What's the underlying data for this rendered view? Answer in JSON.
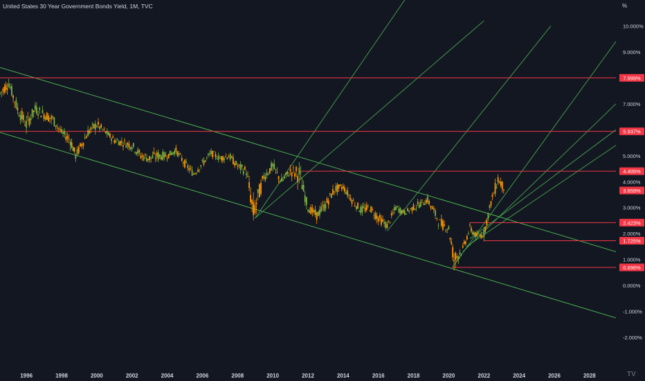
{
  "header": {
    "title": "United States 30 Year Government Bonds Yield, 1M, TVC",
    "unit": "%"
  },
  "colors": {
    "background": "#131722",
    "up": "#26a69a",
    "up_bar": "#7cb342",
    "down": "#ff9800",
    "level_line": "#f23645",
    "channel": "#4caf50",
    "pitchfork": "#4caf50",
    "axis_text": "#d1d4dc"
  },
  "chart_data": {
    "type": "candlestick",
    "timeframe": "1M",
    "source": "TVC",
    "symbol": "United States 30 Year Government Bonds Yield",
    "x_axis": {
      "ticks": [
        "1996",
        "1998",
        "2000",
        "2002",
        "2004",
        "2006",
        "2008",
        "2010",
        "2012",
        "2014",
        "2016",
        "2018",
        "2020",
        "2022",
        "2024",
        "2026",
        "2028"
      ],
      "range": [
        1994.5,
        2029.5
      ]
    },
    "y_axis": {
      "unit": "%",
      "ticks": [
        "10.000%",
        "9.000%",
        "8.000%",
        "7.000%",
        "6.000%",
        "5.000%",
        "4.000%",
        "3.000%",
        "2.000%",
        "1.000%",
        "0.000%",
        "-1.000%",
        "-2.000%"
      ],
      "range": [
        -3.2,
        11.0
      ]
    },
    "horizontal_levels": [
      {
        "value": 7.999,
        "label": "7.999%",
        "start_year": 1994.5
      },
      {
        "value": 5.937,
        "label": "5.937%",
        "start_year": 1994.5
      },
      {
        "value": 4.405,
        "label": "4.405%",
        "start_year": 2011.5
      },
      {
        "value": 3.659,
        "label": "3.659%",
        "current": true
      },
      {
        "value": 2.423,
        "label": "2.423%",
        "start_year": 2021.2
      },
      {
        "value": 1.725,
        "label": "1.725%",
        "start_year": 2022.0
      },
      {
        "value": 0.696,
        "label": "0.696%",
        "start_year": 2020.2
      }
    ],
    "descending_channel": {
      "upper": [
        [
          1994.5,
          8.4
        ],
        [
          2029.5,
          1.3
        ]
      ],
      "lower": [
        [
          1994.5,
          5.9
        ],
        [
          2029.5,
          -1.25
        ]
      ]
    },
    "ascending_lines": [
      [
        [
          2009.0,
          2.6
        ],
        [
          2018.0,
          11.5
        ]
      ],
      [
        [
          2009.0,
          2.6
        ],
        [
          2022.0,
          10.2
        ]
      ],
      [
        [
          2016.5,
          2.1
        ],
        [
          2025.8,
          10.0
        ]
      ],
      [
        [
          2020.2,
          0.7
        ],
        [
          2029.5,
          9.4
        ]
      ],
      [
        [
          2020.8,
          1.3
        ],
        [
          2029.5,
          7.0
        ]
      ],
      [
        [
          2021.2,
          1.8
        ],
        [
          2029.5,
          6.0
        ]
      ],
      [
        [
          2021.0,
          1.5
        ],
        [
          2029.5,
          5.4
        ]
      ]
    ],
    "series": [
      {
        "name": "",
        "x": [
          1994.5,
          1995.0,
          1995.5,
          1996.0,
          1996.5,
          1997.0,
          1997.5,
          1998.0,
          1998.5,
          1998.8,
          1999.5,
          2000.0,
          2000.5,
          2001.0,
          2001.5,
          2002.0,
          2002.5,
          2003.0,
          2003.5,
          2004.0,
          2004.5,
          2005.0,
          2005.5,
          2006.0,
          2006.5,
          2007.0,
          2007.5,
          2008.0,
          2008.5,
          2008.9,
          2009.5,
          2010.0,
          2010.5,
          2011.0,
          2011.5,
          2012.0,
          2012.5,
          2013.0,
          2013.5,
          2014.0,
          2014.5,
          2015.0,
          2015.5,
          2016.0,
          2016.5,
          2017.0,
          2017.5,
          2018.0,
          2018.8,
          2019.5,
          2020.0,
          2020.3,
          2020.8,
          2021.2,
          2021.6,
          2022.0,
          2022.4,
          2022.8,
          2023.2
        ],
        "values": [
          7.4,
          7.8,
          6.8,
          6.2,
          6.8,
          6.6,
          6.4,
          5.9,
          5.6,
          5.0,
          5.9,
          6.2,
          5.9,
          5.6,
          5.5,
          5.4,
          5.0,
          4.9,
          5.0,
          5.0,
          5.2,
          4.7,
          4.3,
          4.7,
          5.1,
          4.9,
          5.0,
          4.6,
          4.4,
          2.8,
          4.2,
          4.6,
          4.0,
          4.4,
          4.3,
          3.0,
          2.7,
          3.1,
          3.7,
          3.8,
          3.3,
          2.9,
          3.0,
          2.6,
          2.3,
          3.0,
          2.8,
          3.0,
          3.3,
          2.4,
          2.2,
          1.0,
          1.4,
          2.2,
          1.9,
          2.0,
          3.2,
          4.1,
          3.7
        ],
        "high": [
          7.9,
          8.1,
          7.4,
          6.9,
          7.1,
          7.0,
          6.8,
          6.1,
          5.9,
          5.5,
          6.3,
          6.6,
          6.1,
          5.9,
          5.8,
          5.7,
          5.3,
          5.3,
          5.4,
          5.3,
          5.4,
          5.0,
          4.8,
          5.1,
          5.3,
          5.1,
          5.4,
          4.9,
          4.7,
          4.4,
          4.7,
          4.9,
          4.6,
          4.8,
          4.6,
          3.4,
          3.2,
          3.6,
          4.0,
          4.0,
          3.6,
          3.3,
          3.3,
          2.9,
          2.7,
          3.3,
          3.1,
          3.3,
          3.5,
          2.8,
          2.5,
          2.1,
          1.8,
          2.5,
          2.2,
          2.4,
          3.5,
          4.4,
          4.0
        ],
        "low": [
          7.0,
          7.3,
          6.4,
          5.9,
          6.3,
          6.2,
          5.9,
          5.6,
          5.0,
          4.8,
          5.5,
          5.8,
          5.6,
          5.3,
          5.2,
          5.0,
          4.6,
          4.5,
          4.6,
          4.8,
          4.9,
          4.4,
          4.2,
          4.5,
          4.8,
          4.6,
          4.8,
          4.3,
          3.9,
          2.5,
          3.9,
          4.1,
          3.9,
          4.1,
          3.1,
          2.8,
          2.5,
          2.8,
          3.3,
          3.5,
          3.0,
          2.6,
          2.7,
          2.2,
          2.1,
          2.7,
          2.7,
          2.8,
          2.9,
          2.0,
          1.9,
          0.7,
          1.2,
          1.9,
          1.7,
          1.7,
          2.9,
          3.4,
          3.5
        ]
      }
    ]
  }
}
